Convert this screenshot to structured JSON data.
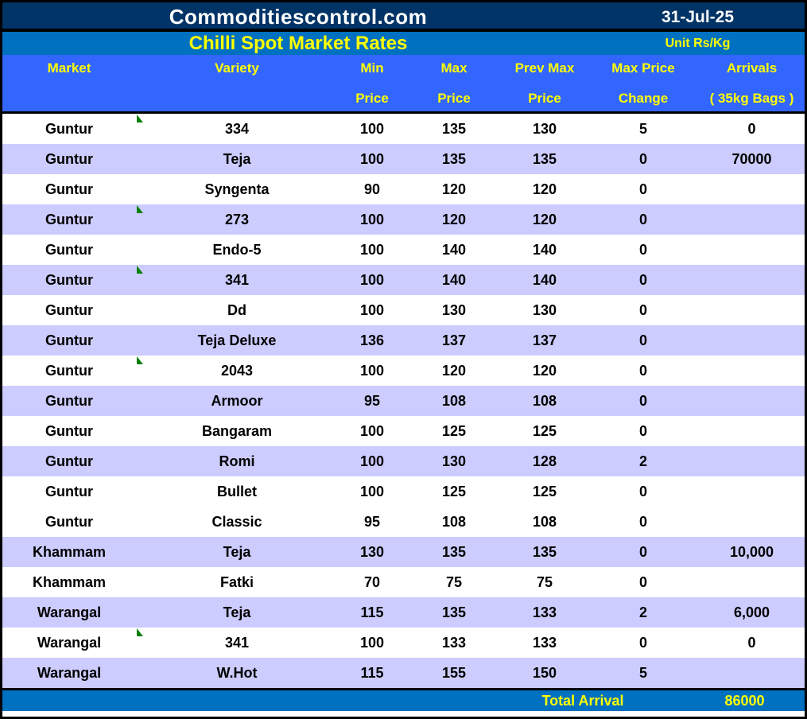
{
  "header": {
    "site": "Commoditiescontrol.com",
    "date": "31-Jul-25",
    "title": "Chilli Spot Market Rates",
    "unit": "Unit Rs/Kg"
  },
  "table": {
    "columns": [
      {
        "line1": "Market",
        "line2": ""
      },
      {
        "line1": "Variety",
        "line2": ""
      },
      {
        "line1": "Min",
        "line2": "Price"
      },
      {
        "line1": "Max",
        "line2": "Price"
      },
      {
        "line1": "Prev Max",
        "line2": "Price"
      },
      {
        "line1": "Max Price",
        "line2": "Change"
      },
      {
        "line1": "Arrivals",
        "line2": "( 35kg Bags )"
      }
    ],
    "rows": [
      {
        "market": "Guntur",
        "variety": "334",
        "text_flag": true,
        "min": "100",
        "max": "135",
        "prev_max": "130",
        "change": "5",
        "arrivals": "0",
        "shaded": false
      },
      {
        "market": "Guntur",
        "variety": "Teja",
        "text_flag": false,
        "min": "100",
        "max": "135",
        "prev_max": "135",
        "change": "0",
        "arrivals": "70000",
        "shaded": true
      },
      {
        "market": "Guntur",
        "variety": "Syngenta",
        "text_flag": false,
        "min": "90",
        "max": "120",
        "prev_max": "120",
        "change": "0",
        "arrivals": "",
        "shaded": false
      },
      {
        "market": "Guntur",
        "variety": "273",
        "text_flag": true,
        "min": "100",
        "max": "120",
        "prev_max": "120",
        "change": "0",
        "arrivals": "",
        "shaded": true
      },
      {
        "market": "Guntur",
        "variety": "Endo-5",
        "text_flag": false,
        "min": "100",
        "max": "140",
        "prev_max": "140",
        "change": "0",
        "arrivals": "",
        "shaded": false
      },
      {
        "market": "Guntur",
        "variety": "341",
        "text_flag": true,
        "min": "100",
        "max": "140",
        "prev_max": "140",
        "change": "0",
        "arrivals": "",
        "shaded": true
      },
      {
        "market": "Guntur",
        "variety": "Dd",
        "text_flag": false,
        "min": "100",
        "max": "130",
        "prev_max": "130",
        "change": "0",
        "arrivals": "",
        "shaded": false
      },
      {
        "market": "Guntur",
        "variety": "Teja Deluxe",
        "text_flag": false,
        "min": "136",
        "max": "137",
        "prev_max": "137",
        "change": "0",
        "arrivals": "",
        "shaded": true
      },
      {
        "market": "Guntur",
        "variety": "2043",
        "text_flag": true,
        "min": "100",
        "max": "120",
        "prev_max": "120",
        "change": "0",
        "arrivals": "",
        "shaded": false
      },
      {
        "market": "Guntur",
        "variety": "Armoor",
        "text_flag": false,
        "min": "95",
        "max": "108",
        "prev_max": "108",
        "change": "0",
        "arrivals": "",
        "shaded": true
      },
      {
        "market": "Guntur",
        "variety": "Bangaram",
        "text_flag": false,
        "min": "100",
        "max": "125",
        "prev_max": "125",
        "change": "0",
        "arrivals": "",
        "shaded": false
      },
      {
        "market": "Guntur",
        "variety": "Romi",
        "text_flag": false,
        "min": "100",
        "max": "130",
        "prev_max": "128",
        "change": "2",
        "arrivals": "",
        "shaded": true
      },
      {
        "market": "Guntur",
        "variety": "Bullet",
        "text_flag": false,
        "min": "100",
        "max": "125",
        "prev_max": "125",
        "change": "0",
        "arrivals": "",
        "shaded": false
      },
      {
        "market": "Guntur",
        "variety": "Classic",
        "text_flag": false,
        "min": "95",
        "max": "108",
        "prev_max": "108",
        "change": "0",
        "arrivals": "",
        "shaded": false
      },
      {
        "market": "Khammam",
        "variety": "Teja",
        "text_flag": false,
        "min": "130",
        "max": "135",
        "prev_max": "135",
        "change": "0",
        "arrivals": "10,000",
        "shaded": true
      },
      {
        "market": "Khammam",
        "variety": "Fatki",
        "text_flag": false,
        "min": "70",
        "max": "75",
        "prev_max": "75",
        "change": "0",
        "arrivals": "",
        "shaded": false
      },
      {
        "market": "Warangal",
        "variety": "Teja",
        "text_flag": false,
        "min": "115",
        "max": "135",
        "prev_max": "133",
        "change": "2",
        "arrivals": "6,000",
        "shaded": true
      },
      {
        "market": "Warangal",
        "variety": "341",
        "text_flag": true,
        "min": "100",
        "max": "133",
        "prev_max": "133",
        "change": "0",
        "arrivals": "0",
        "shaded": false
      },
      {
        "market": "Warangal",
        "variety": "W.Hot",
        "text_flag": false,
        "min": "115",
        "max": "155",
        "prev_max": "150",
        "change": "5",
        "arrivals": "",
        "shaded": true
      }
    ]
  },
  "footer": {
    "label": "Total Arrival",
    "value": "86000"
  },
  "colors": {
    "top_bar": "#003366",
    "title_bar": "#0070C0",
    "header_row": "#3366FF",
    "shaded_row": "#CCCCFF",
    "accent_text": "#FFFF00",
    "flag_indicator": "#008000"
  }
}
